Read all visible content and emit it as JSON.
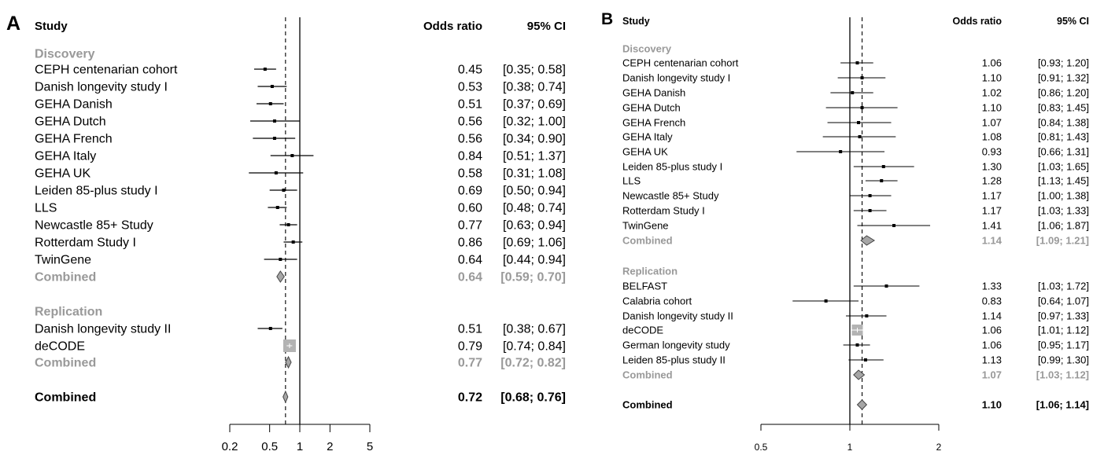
{
  "chart_data": [
    {
      "type": "forest",
      "panel_letter": "A",
      "header": {
        "study": "Study",
        "or": "Odds ratio",
        "ci": "95% CI"
      },
      "xscale": "log",
      "xlim": [
        0.2,
        5
      ],
      "xticks": [
        "0.2",
        "0.5",
        "1",
        "2",
        "5"
      ],
      "reference_line": 1,
      "overall_dashed_line": 0.72,
      "colors": {
        "study": "#000000",
        "subtotal": "#999999",
        "replication_box": "#b3b3b3"
      },
      "groups": [
        {
          "name": "Discovery",
          "studies": [
            {
              "label": "CEPH centenarian cohort",
              "or": 0.45,
              "lo": 0.35,
              "hi": 0.58,
              "or_text": "0.45",
              "ci_text": "[0.35; 0.58]"
            },
            {
              "label": "Danish longevity study I",
              "or": 0.53,
              "lo": 0.38,
              "hi": 0.74,
              "or_text": "0.53",
              "ci_text": "[0.38; 0.74]"
            },
            {
              "label": "GEHA Danish",
              "or": 0.51,
              "lo": 0.37,
              "hi": 0.69,
              "or_text": "0.51",
              "ci_text": "[0.37; 0.69]"
            },
            {
              "label": "GEHA Dutch",
              "or": 0.56,
              "lo": 0.32,
              "hi": 1.0,
              "or_text": "0.56",
              "ci_text": "[0.32; 1.00]"
            },
            {
              "label": "GEHA French",
              "or": 0.56,
              "lo": 0.34,
              "hi": 0.9,
              "or_text": "0.56",
              "ci_text": "[0.34; 0.90]"
            },
            {
              "label": "GEHA Italy",
              "or": 0.84,
              "lo": 0.51,
              "hi": 1.37,
              "or_text": "0.84",
              "ci_text": "[0.51; 1.37]"
            },
            {
              "label": "GEHA UK",
              "or": 0.58,
              "lo": 0.31,
              "hi": 1.08,
              "or_text": "0.58",
              "ci_text": "[0.31; 1.08]"
            },
            {
              "label": "Leiden 85-plus study I",
              "or": 0.69,
              "lo": 0.5,
              "hi": 0.94,
              "or_text": "0.69",
              "ci_text": "[0.50; 0.94]"
            },
            {
              "label": "LLS",
              "or": 0.6,
              "lo": 0.48,
              "hi": 0.74,
              "or_text": "0.60",
              "ci_text": "[0.48; 0.74]"
            },
            {
              "label": "Newcastle 85+ Study",
              "or": 0.77,
              "lo": 0.63,
              "hi": 0.94,
              "or_text": "0.77",
              "ci_text": "[0.63; 0.94]"
            },
            {
              "label": "Rotterdam Study I",
              "or": 0.86,
              "lo": 0.69,
              "hi": 1.06,
              "or_text": "0.86",
              "ci_text": "[0.69; 1.06]"
            },
            {
              "label": "TwinGene",
              "or": 0.64,
              "lo": 0.44,
              "hi": 0.94,
              "or_text": "0.64",
              "ci_text": "[0.44; 0.94]"
            }
          ],
          "combined": {
            "label": "Combined",
            "or": 0.64,
            "lo": 0.59,
            "hi": 0.7,
            "or_text": "0.64",
            "ci_text": "[0.59; 0.70]"
          }
        },
        {
          "name": "Replication",
          "studies": [
            {
              "label": "Danish longevity study II",
              "or": 0.51,
              "lo": 0.38,
              "hi": 0.67,
              "or_text": "0.51",
              "ci_text": "[0.38; 0.67]"
            },
            {
              "label": "deCODE",
              "or": 0.79,
              "lo": 0.74,
              "hi": 0.84,
              "or_text": "0.79",
              "ci_text": "[0.74; 0.84]",
              "large": true
            }
          ],
          "combined": {
            "label": "Combined",
            "or": 0.77,
            "lo": 0.72,
            "hi": 0.82,
            "or_text": "0.77",
            "ci_text": "[0.72; 0.82]"
          }
        }
      ],
      "overall": {
        "label": "Combined",
        "or": 0.72,
        "lo": 0.68,
        "hi": 0.76,
        "or_text": "0.72",
        "ci_text": "[0.68; 0.76]"
      }
    },
    {
      "type": "forest",
      "panel_letter": "B",
      "header": {
        "study": "Study",
        "or": "Odds ratio",
        "ci": "95% CI"
      },
      "xscale": "log",
      "xlim": [
        0.5,
        2
      ],
      "xticks": [
        "0.5",
        "1",
        "2"
      ],
      "reference_line": 1,
      "overall_dashed_line": 1.1,
      "colors": {
        "study": "#000000",
        "subtotal": "#999999",
        "replication_box": "#b3b3b3"
      },
      "groups": [
        {
          "name": "Discovery",
          "studies": [
            {
              "label": "CEPH centenarian cohort",
              "or": 1.06,
              "lo": 0.93,
              "hi": 1.2,
              "or_text": "1.06",
              "ci_text": "[0.93; 1.20]"
            },
            {
              "label": "Danish longevity study I",
              "or": 1.1,
              "lo": 0.91,
              "hi": 1.32,
              "or_text": "1.10",
              "ci_text": "[0.91; 1.32]"
            },
            {
              "label": "GEHA Danish",
              "or": 1.02,
              "lo": 0.86,
              "hi": 1.2,
              "or_text": "1.02",
              "ci_text": "[0.86; 1.20]"
            },
            {
              "label": "GEHA Dutch",
              "or": 1.1,
              "lo": 0.83,
              "hi": 1.45,
              "or_text": "1.10",
              "ci_text": "[0.83; 1.45]"
            },
            {
              "label": "GEHA French",
              "or": 1.07,
              "lo": 0.84,
              "hi": 1.38,
              "or_text": "1.07",
              "ci_text": "[0.84; 1.38]"
            },
            {
              "label": "GEHA Italy",
              "or": 1.08,
              "lo": 0.81,
              "hi": 1.43,
              "or_text": "1.08",
              "ci_text": "[0.81; 1.43]"
            },
            {
              "label": "GEHA UK",
              "or": 0.93,
              "lo": 0.66,
              "hi": 1.31,
              "or_text": "0.93",
              "ci_text": "[0.66; 1.31]"
            },
            {
              "label": "Leiden 85-plus study I",
              "or": 1.3,
              "lo": 1.03,
              "hi": 1.65,
              "or_text": "1.30",
              "ci_text": "[1.03; 1.65]"
            },
            {
              "label": "LLS",
              "or": 1.28,
              "lo": 1.13,
              "hi": 1.45,
              "or_text": "1.28",
              "ci_text": "[1.13; 1.45]"
            },
            {
              "label": "Newcastle 85+ Study",
              "or": 1.17,
              "lo": 1.0,
              "hi": 1.38,
              "or_text": "1.17",
              "ci_text": "[1.00; 1.38]"
            },
            {
              "label": "Rotterdam Study I",
              "or": 1.17,
              "lo": 1.03,
              "hi": 1.33,
              "or_text": "1.17",
              "ci_text": "[1.03; 1.33]"
            },
            {
              "label": "TwinGene",
              "or": 1.41,
              "lo": 1.06,
              "hi": 1.87,
              "or_text": "1.41",
              "ci_text": "[1.06; 1.87]"
            }
          ],
          "combined": {
            "label": "Combined",
            "or": 1.14,
            "lo": 1.09,
            "hi": 1.21,
            "or_text": "1.14",
            "ci_text": "[1.09; 1.21]"
          }
        },
        {
          "name": "Replication",
          "studies": [
            {
              "label": "BELFAST",
              "or": 1.33,
              "lo": 1.03,
              "hi": 1.72,
              "or_text": "1.33",
              "ci_text": "[1.03; 1.72]"
            },
            {
              "label": "Calabria cohort",
              "or": 0.83,
              "lo": 0.64,
              "hi": 1.07,
              "or_text": "0.83",
              "ci_text": "[0.64; 1.07]"
            },
            {
              "label": "Danish longevity study II",
              "or": 1.14,
              "lo": 0.97,
              "hi": 1.33,
              "or_text": "1.14",
              "ci_text": "[0.97; 1.33]"
            },
            {
              "label": "deCODE",
              "or": 1.06,
              "lo": 1.01,
              "hi": 1.12,
              "or_text": "1.06",
              "ci_text": "[1.01; 1.12]",
              "large": true
            },
            {
              "label": "German longevity study",
              "or": 1.06,
              "lo": 0.95,
              "hi": 1.17,
              "or_text": "1.06",
              "ci_text": "[0.95; 1.17]"
            },
            {
              "label": "Leiden 85-plus study II",
              "or": 1.13,
              "lo": 0.99,
              "hi": 1.3,
              "or_text": "1.13",
              "ci_text": "[0.99; 1.30]"
            }
          ],
          "combined": {
            "label": "Combined",
            "or": 1.07,
            "lo": 1.03,
            "hi": 1.12,
            "or_text": "1.07",
            "ci_text": "[1.03; 1.12]"
          }
        }
      ],
      "overall": {
        "label": "Combined",
        "or": 1.1,
        "lo": 1.06,
        "hi": 1.14,
        "or_text": "1.10",
        "ci_text": "[1.06; 1.14]"
      }
    }
  ]
}
